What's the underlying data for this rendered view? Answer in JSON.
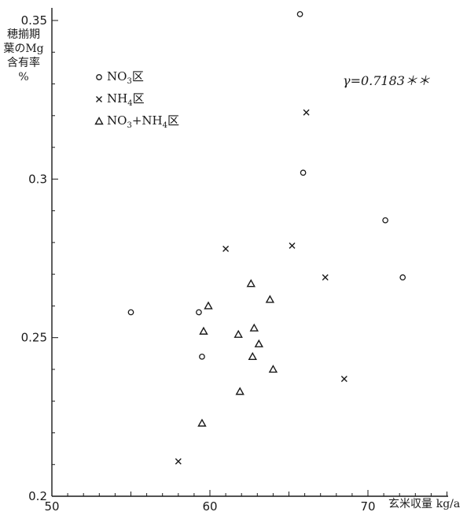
{
  "chart_data": {
    "type": "scatter",
    "title": "",
    "ylabel_lines": [
      "穂揃期",
      "葉のMg",
      "含有率",
      "%"
    ],
    "xlabel": "玄米収量",
    "xunit": "kg/a",
    "xlim": [
      50,
      75
    ],
    "ylim": [
      0.2,
      0.35
    ],
    "xticks": [
      {
        "value": 50,
        "label": "50"
      },
      {
        "value": 60,
        "label": "60"
      },
      {
        "value": 70,
        "label": "70"
      }
    ],
    "yticks": [
      {
        "value": 0.2,
        "label": "0.2"
      },
      {
        "value": 0.25,
        "label": "0.25"
      },
      {
        "value": 0.3,
        "label": "0.3"
      },
      {
        "value": 0.35,
        "label": "0.35"
      }
    ],
    "annotation": "γ=0.7183＊＊",
    "grid": false,
    "legend_position": "top-left",
    "series": [
      {
        "name": "NO3区",
        "marker": "circle",
        "points": [
          {
            "x": 55.0,
            "y": 0.258
          },
          {
            "x": 59.3,
            "y": 0.258
          },
          {
            "x": 59.5,
            "y": 0.244
          },
          {
            "x": 65.7,
            "y": 0.352
          },
          {
            "x": 65.9,
            "y": 0.302
          },
          {
            "x": 71.1,
            "y": 0.287
          },
          {
            "x": 72.2,
            "y": 0.269
          }
        ]
      },
      {
        "name": "NH4区",
        "marker": "x",
        "points": [
          {
            "x": 58.0,
            "y": 0.211
          },
          {
            "x": 61.0,
            "y": 0.278
          },
          {
            "x": 65.2,
            "y": 0.279
          },
          {
            "x": 66.1,
            "y": 0.321
          },
          {
            "x": 67.3,
            "y": 0.269
          },
          {
            "x": 68.5,
            "y": 0.237
          }
        ]
      },
      {
        "name": "NO3+NH4区",
        "marker": "triangle",
        "points": [
          {
            "x": 59.5,
            "y": 0.223
          },
          {
            "x": 59.6,
            "y": 0.252
          },
          {
            "x": 59.9,
            "y": 0.26
          },
          {
            "x": 61.8,
            "y": 0.251
          },
          {
            "x": 61.9,
            "y": 0.233
          },
          {
            "x": 62.6,
            "y": 0.267
          },
          {
            "x": 62.7,
            "y": 0.244
          },
          {
            "x": 62.8,
            "y": 0.253
          },
          {
            "x": 63.1,
            "y": 0.248
          },
          {
            "x": 63.8,
            "y": 0.262
          },
          {
            "x": 64.0,
            "y": 0.24
          }
        ]
      }
    ]
  }
}
